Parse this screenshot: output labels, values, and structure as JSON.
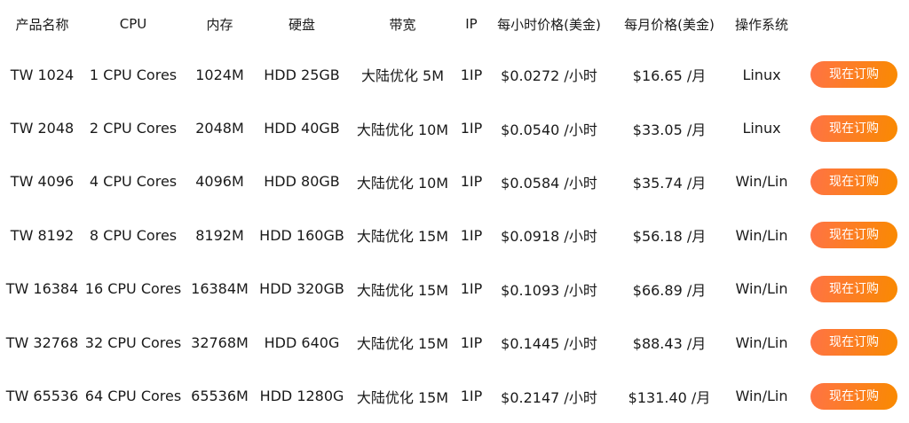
{
  "colors": {
    "background": "#ffffff",
    "text": "#1a1a1a",
    "button_gradient_start": "#ff7345",
    "button_gradient_end": "#f98a00",
    "button_text": "#ffffff"
  },
  "table": {
    "headers": {
      "name": "产品名称",
      "cpu": "CPU",
      "memory": "内存",
      "disk": "硬盘",
      "bandwidth": "带宽",
      "ip": "IP",
      "hourly": "每小时价格(美金)",
      "monthly": "每月价格(美金)",
      "os": "操作系统"
    },
    "order_button_label": "现在订购",
    "rows": [
      {
        "name": "TW 1024",
        "cpu": "1 CPU Cores",
        "memory": "1024M",
        "disk": "HDD 25GB",
        "bandwidth": "大陆优化 5M",
        "ip": "1IP",
        "hourly": "$0.0272 /小时",
        "monthly": "$16.65 /月",
        "os": "Linux"
      },
      {
        "name": "TW 2048",
        "cpu": "2 CPU Cores",
        "memory": "2048M",
        "disk": "HDD 40GB",
        "bandwidth": "大陆优化 10M",
        "ip": "1IP",
        "hourly": "$0.0540 /小时",
        "monthly": "$33.05 /月",
        "os": "Linux"
      },
      {
        "name": "TW 4096",
        "cpu": "4 CPU Cores",
        "memory": "4096M",
        "disk": "HDD 80GB",
        "bandwidth": "大陆优化 10M",
        "ip": "1IP",
        "hourly": "$0.0584 /小时",
        "monthly": "$35.74 /月",
        "os": "Win/Lin"
      },
      {
        "name": "TW 8192",
        "cpu": "8 CPU Cores",
        "memory": "8192M",
        "disk": "HDD 160GB",
        "bandwidth": "大陆优化 15M",
        "ip": "1IP",
        "hourly": "$0.0918 /小时",
        "monthly": "$56.18 /月",
        "os": "Win/Lin"
      },
      {
        "name": "TW 16384",
        "cpu": "16 CPU Cores",
        "memory": "16384M",
        "disk": "HDD 320GB",
        "bandwidth": "大陆优化 15M",
        "ip": "1IP",
        "hourly": "$0.1093 /小时",
        "monthly": "$66.89 /月",
        "os": "Win/Lin"
      },
      {
        "name": "TW 32768",
        "cpu": "32 CPU Cores",
        "memory": "32768M",
        "disk": "HDD 640G",
        "bandwidth": "大陆优化 15M",
        "ip": "1IP",
        "hourly": "$0.1445 /小时",
        "monthly": "$88.43 /月",
        "os": "Win/Lin"
      },
      {
        "name": "TW 65536",
        "cpu": "64 CPU Cores",
        "memory": "65536M",
        "disk": "HDD 1280G",
        "bandwidth": "大陆优化 15M",
        "ip": "1IP",
        "hourly": "$0.2147 /小时",
        "monthly": "$131.40 /月",
        "os": "Win/Lin"
      }
    ]
  }
}
